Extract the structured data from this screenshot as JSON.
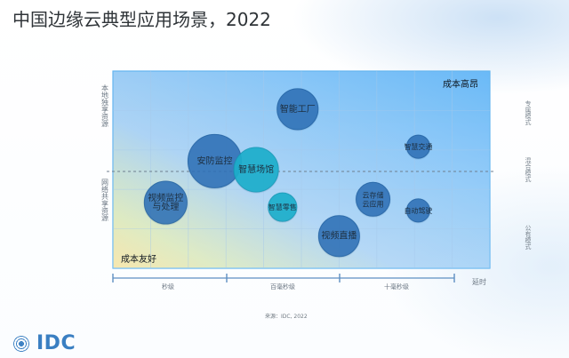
{
  "page": {
    "title": "中国边缘云典型应用场景，2022",
    "source": "来源：IDC, 2022",
    "brand": "IDC"
  },
  "chart_data": {
    "type": "scatter",
    "title": "",
    "x_axis": {
      "label": "延时",
      "categories": [
        "秒级",
        "百毫秒级",
        "十毫秒级"
      ]
    },
    "y_axis": {
      "top_label": "本地独享资源",
      "bottom_label": "网络共享资源"
    },
    "right_labels": [
      "专属模式",
      "混合模式",
      "公有模式"
    ],
    "corner_labels": {
      "top_right": "成本高昂",
      "bottom_left": "成本友好"
    },
    "points": [
      {
        "label": "视频监控 与处理",
        "x": 0.7,
        "y": 1.0,
        "size": 24
      },
      {
        "label": "安防监控",
        "x": 1.35,
        "y": 1.63,
        "size": 30
      },
      {
        "label": "智慧场馆",
        "x": 1.9,
        "y": 1.5,
        "size": 25
      },
      {
        "label": "智能工厂",
        "x": 2.45,
        "y": 2.42,
        "size": 23
      },
      {
        "label": "智慧零售",
        "x": 2.25,
        "y": 0.93,
        "size": 16
      },
      {
        "label": "视频直播",
        "x": 3.0,
        "y": 0.49,
        "size": 23
      },
      {
        "label": "云存储 云应用",
        "x": 3.45,
        "y": 1.05,
        "size": 19
      },
      {
        "label": "智慧交通",
        "x": 4.05,
        "y": 1.85,
        "size": 13
      },
      {
        "label": "自动驾驶",
        "x": 4.05,
        "y": 0.88,
        "size": 13
      }
    ],
    "x_range": [
      0,
      5
    ],
    "y_range": [
      0,
      3
    ],
    "midline": 1.47,
    "grid": true
  },
  "colors": {
    "title": "#2f3438",
    "bubble_fill": "#2d6fb6",
    "bubble_stroke": "#1f5ea1",
    "bubble_highlight": "#1caecb",
    "bubble_highlight_stroke": "#159bb8",
    "plot_border": "#61b3ef",
    "grid": "#a6c9ea",
    "axis": "#5e8fc2",
    "dashed": "#6e7f8f",
    "bubble_text": "#1d2f40",
    "label": "#6c7783",
    "brand": "#3a7fc2"
  }
}
